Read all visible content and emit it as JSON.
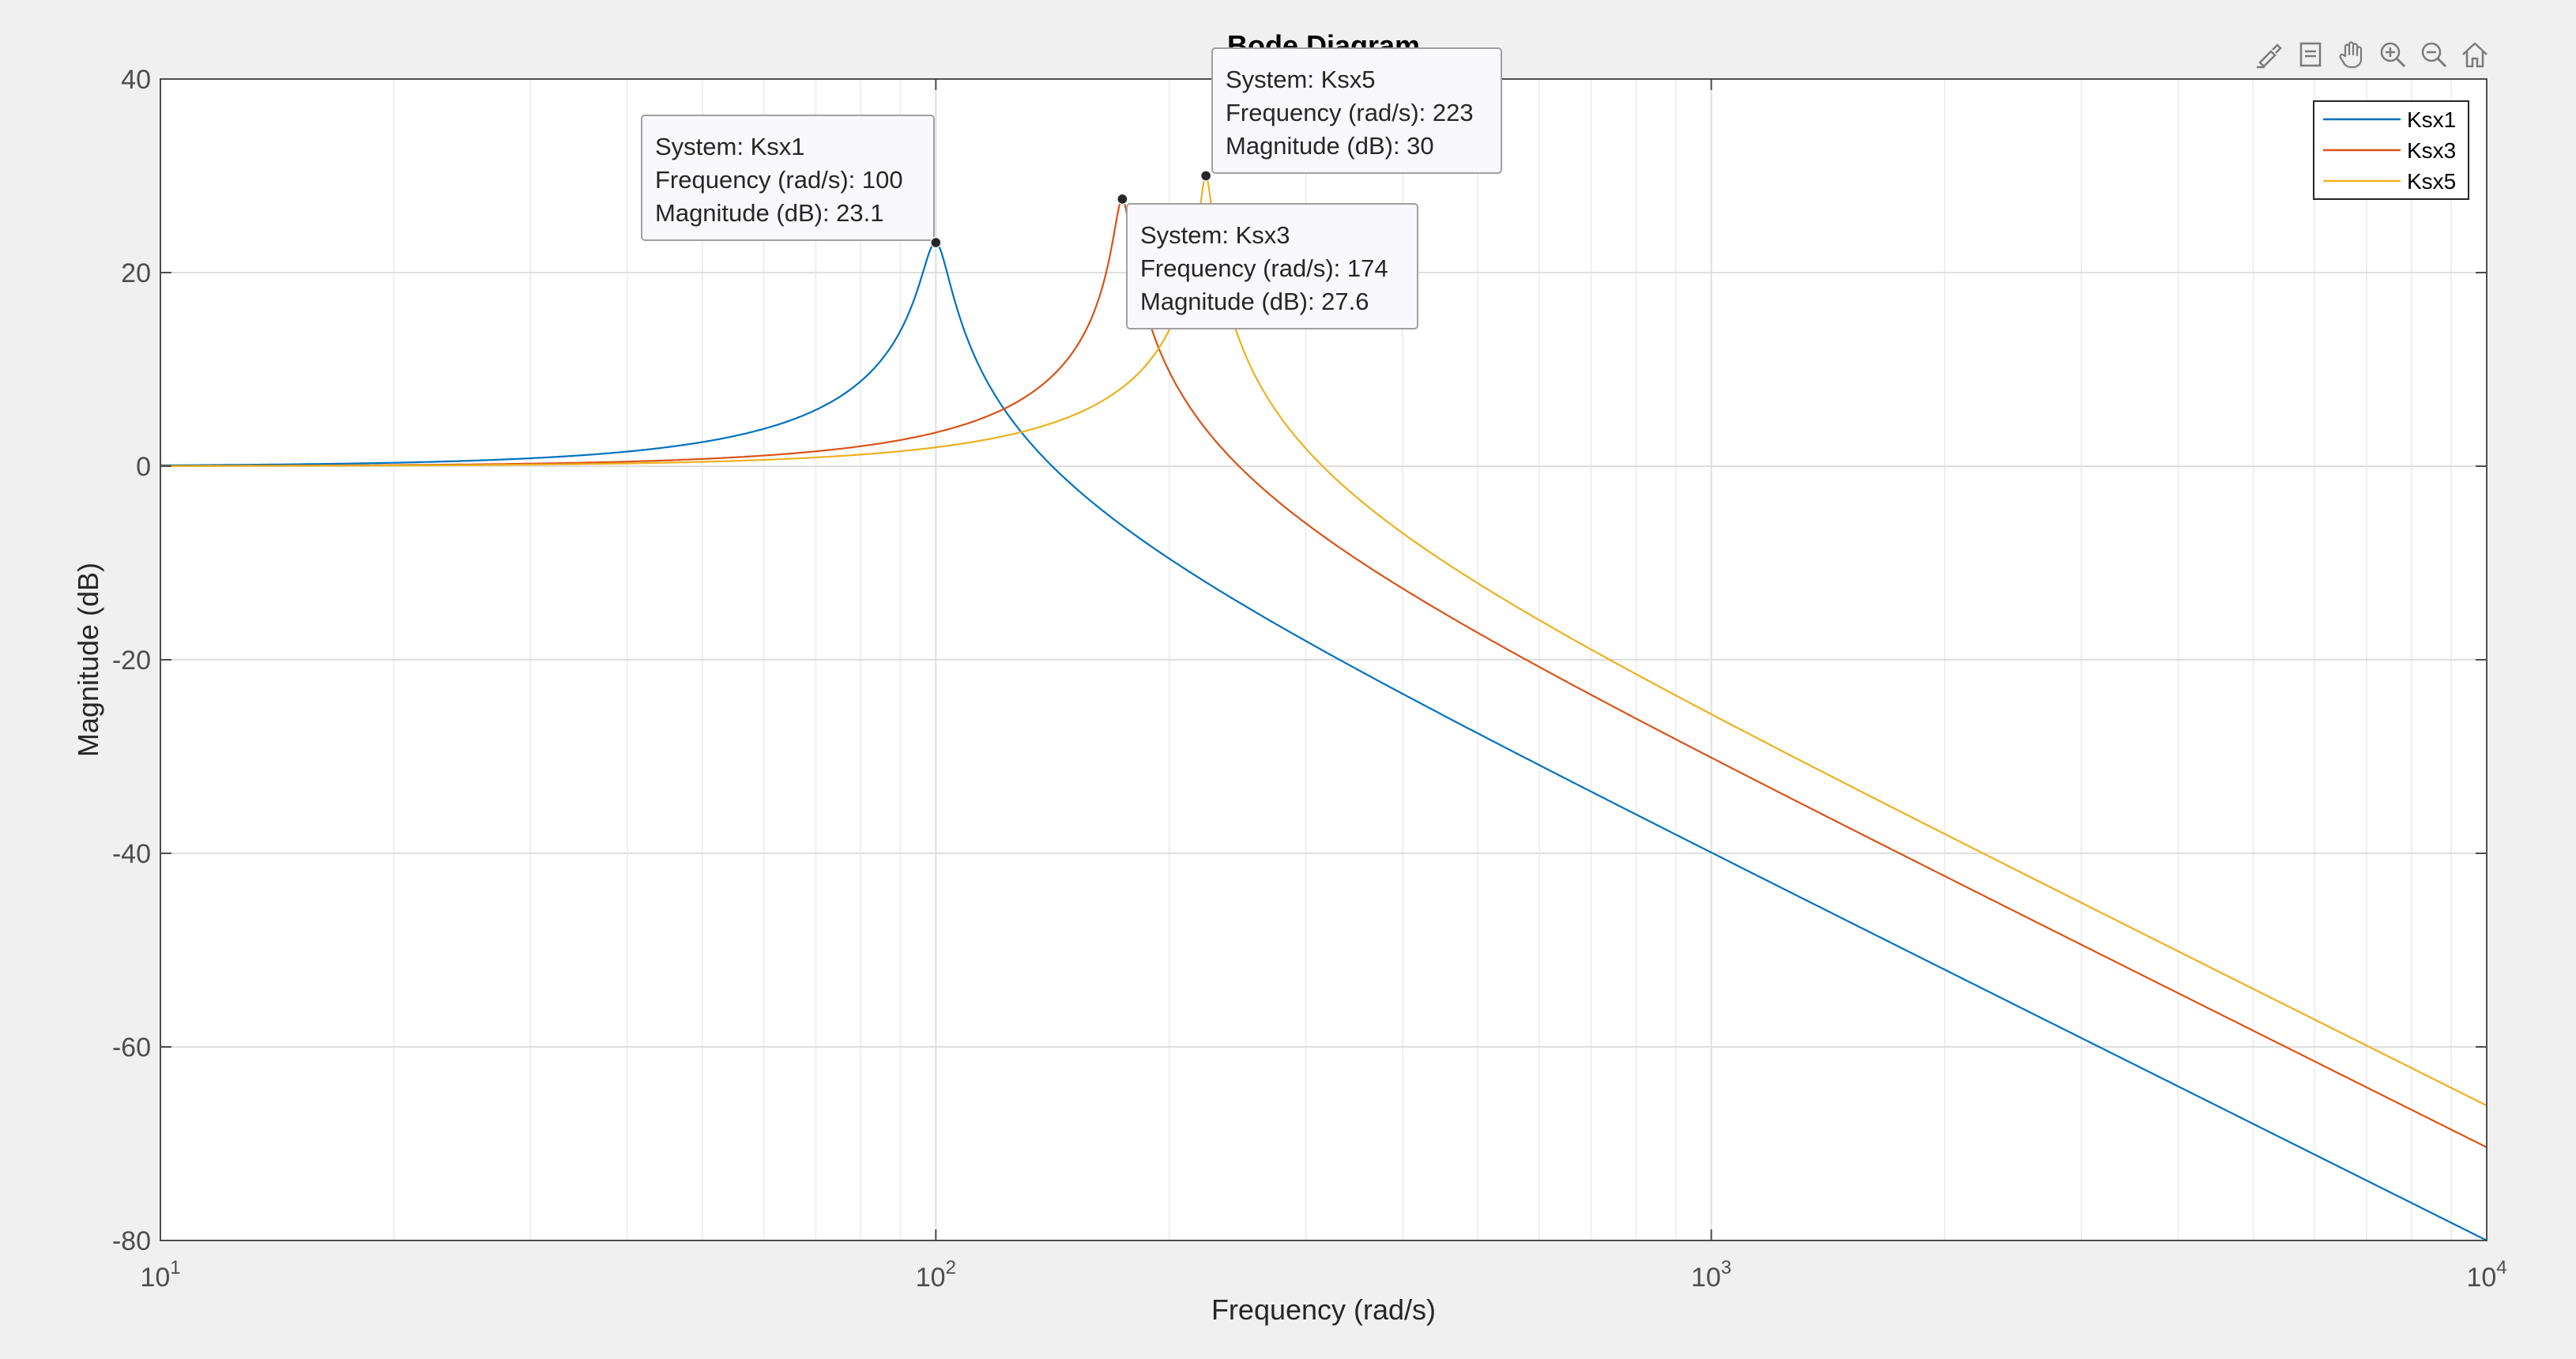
{
  "figure": {
    "background": "#f0f0f0",
    "axes_background": "#ffffff",
    "grid_color": "#dfdfdf",
    "tick_color": "#4d4d4d"
  },
  "toolbar": {
    "icons": [
      "brush-data-icon",
      "datatip-icon",
      "pan-hand-icon",
      "zoom-in-icon",
      "zoom-out-icon",
      "home-icon"
    ]
  },
  "chart_data": {
    "type": "line",
    "title": "Bode Diagram",
    "xlabel": "Frequency  (rad/s)",
    "ylabel": "Magnitude (dB)",
    "xscale": "log",
    "xlim": [
      10,
      10000
    ],
    "ylim": [
      -80,
      40
    ],
    "xticks": [
      {
        "value": 10,
        "base": "10",
        "exp": "1"
      },
      {
        "value": 100,
        "base": "10",
        "exp": "2"
      },
      {
        "value": 1000,
        "base": "10",
        "exp": "3"
      },
      {
        "value": 10000,
        "base": "10",
        "exp": "4"
      }
    ],
    "yticks": [
      {
        "value": 40,
        "label": "40"
      },
      {
        "value": 20,
        "label": "20"
      },
      {
        "value": 0,
        "label": "0"
      },
      {
        "value": -20,
        "label": "-20"
      },
      {
        "value": -40,
        "label": "-40"
      },
      {
        "value": -60,
        "label": "-60"
      },
      {
        "value": -80,
        "label": "-80"
      }
    ],
    "grid": true,
    "minor_grid": true,
    "legend_position": "top-right",
    "series": [
      {
        "name": "Ksx1",
        "color": "#0072BD",
        "wn": 100,
        "peak_db": 23.1
      },
      {
        "name": "Ksx3",
        "color": "#D95319",
        "wn": 174,
        "peak_db": 27.6
      },
      {
        "name": "Ksx5",
        "color": "#EDB120",
        "wn": 223,
        "peak_db": 30
      }
    ],
    "datatips": [
      {
        "series_index": 0,
        "x": 100,
        "y": 23.1,
        "lines": [
          "System: Ksx1",
          "Frequency (rad/s): 100",
          "Magnitude (dB): 23.1"
        ]
      },
      {
        "series_index": 1,
        "x": 174,
        "y": 27.6,
        "lines": [
          "System: Ksx3",
          "Frequency (rad/s): 174",
          "Magnitude (dB): 27.6"
        ]
      },
      {
        "series_index": 2,
        "x": 223,
        "y": 30,
        "lines": [
          "System: Ksx5",
          "Frequency (rad/s): 223",
          "Magnitude (dB): 30"
        ]
      }
    ]
  }
}
